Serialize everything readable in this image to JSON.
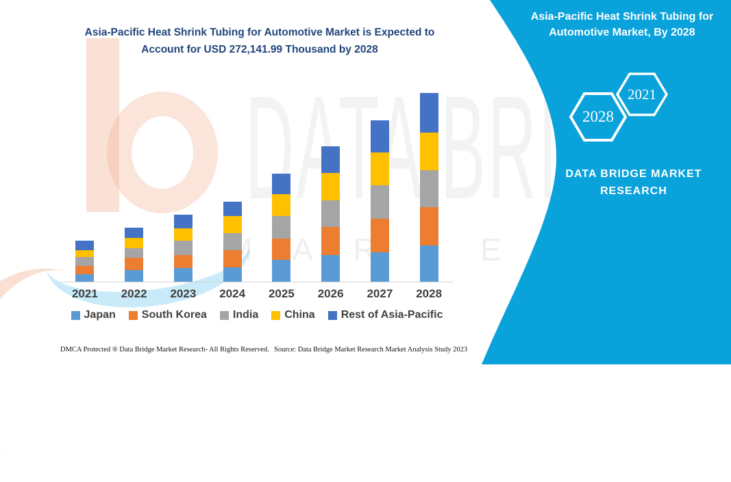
{
  "page": {
    "title_line1": "Asia-Pacific Heat Shrink Tubing for Automotive Market is Expected to",
    "title_line2": "Account for USD 272,141.99 Thousand by 2028",
    "title_color": "#20457C"
  },
  "chart_data": {
    "type": "bar",
    "stacked": true,
    "value_unit": "USD Thousand",
    "categories": [
      "2021",
      "2022",
      "2023",
      "2024",
      "2025",
      "2026",
      "2027",
      "2028"
    ],
    "series": [
      {
        "name": "Japan",
        "color": "#5B9BD5",
        "values": [
          10900,
          17100,
          19700,
          21100,
          31300,
          38900,
          42800,
          52000
        ]
      },
      {
        "name": "South Korea",
        "color": "#ED7D31",
        "values": [
          11600,
          17400,
          18800,
          24000,
          30600,
          39500,
          47800,
          55300
        ]
      },
      {
        "name": "India",
        "color": "#A5A5A5",
        "values": [
          12500,
          13900,
          20300,
          25400,
          32900,
          38800,
          48000,
          53900
        ]
      },
      {
        "name": "China",
        "color": "#FFC000",
        "values": [
          10500,
          14800,
          18200,
          24000,
          31300,
          39200,
          47400,
          53700
        ]
      },
      {
        "name": "Rest of Asia-Pacific",
        "color": "#4472C4",
        "values": [
          13200,
          15100,
          19100,
          21400,
          29600,
          38800,
          47000,
          57241.99
        ]
      }
    ],
    "totals_estimated": [
      58700,
      78300,
      96100,
      115900,
      155700,
      195200,
      233000,
      272141.99
    ],
    "total_2028_labeled": 272141.99,
    "legend_position": "bottom",
    "axis": {
      "y_axis_visible": false,
      "gridlines": false,
      "baseline_color": "#D6D4D4"
    }
  },
  "right_panel": {
    "background_color": "#0AA2DB",
    "title_line1": "Asia-Pacific Heat Shrink Tubing for",
    "title_line2": "Automotive Market, By 2028",
    "hexagon_front_year": "2028",
    "hexagon_back_year": "2021",
    "brand_line1": "DATA BRIDGE MARKET",
    "brand_line2": "RESEARCH"
  },
  "watermark": {
    "text1": "DATA BRIDGE",
    "text2": "M A R K E T  R E S E A R C H"
  },
  "footer": {
    "left": "DMCA Protected ® Data Bridge Market Research-  All Rights Reserved.",
    "right": "Source: Data Bridge Market Research  Market Analysis Study 2023"
  }
}
